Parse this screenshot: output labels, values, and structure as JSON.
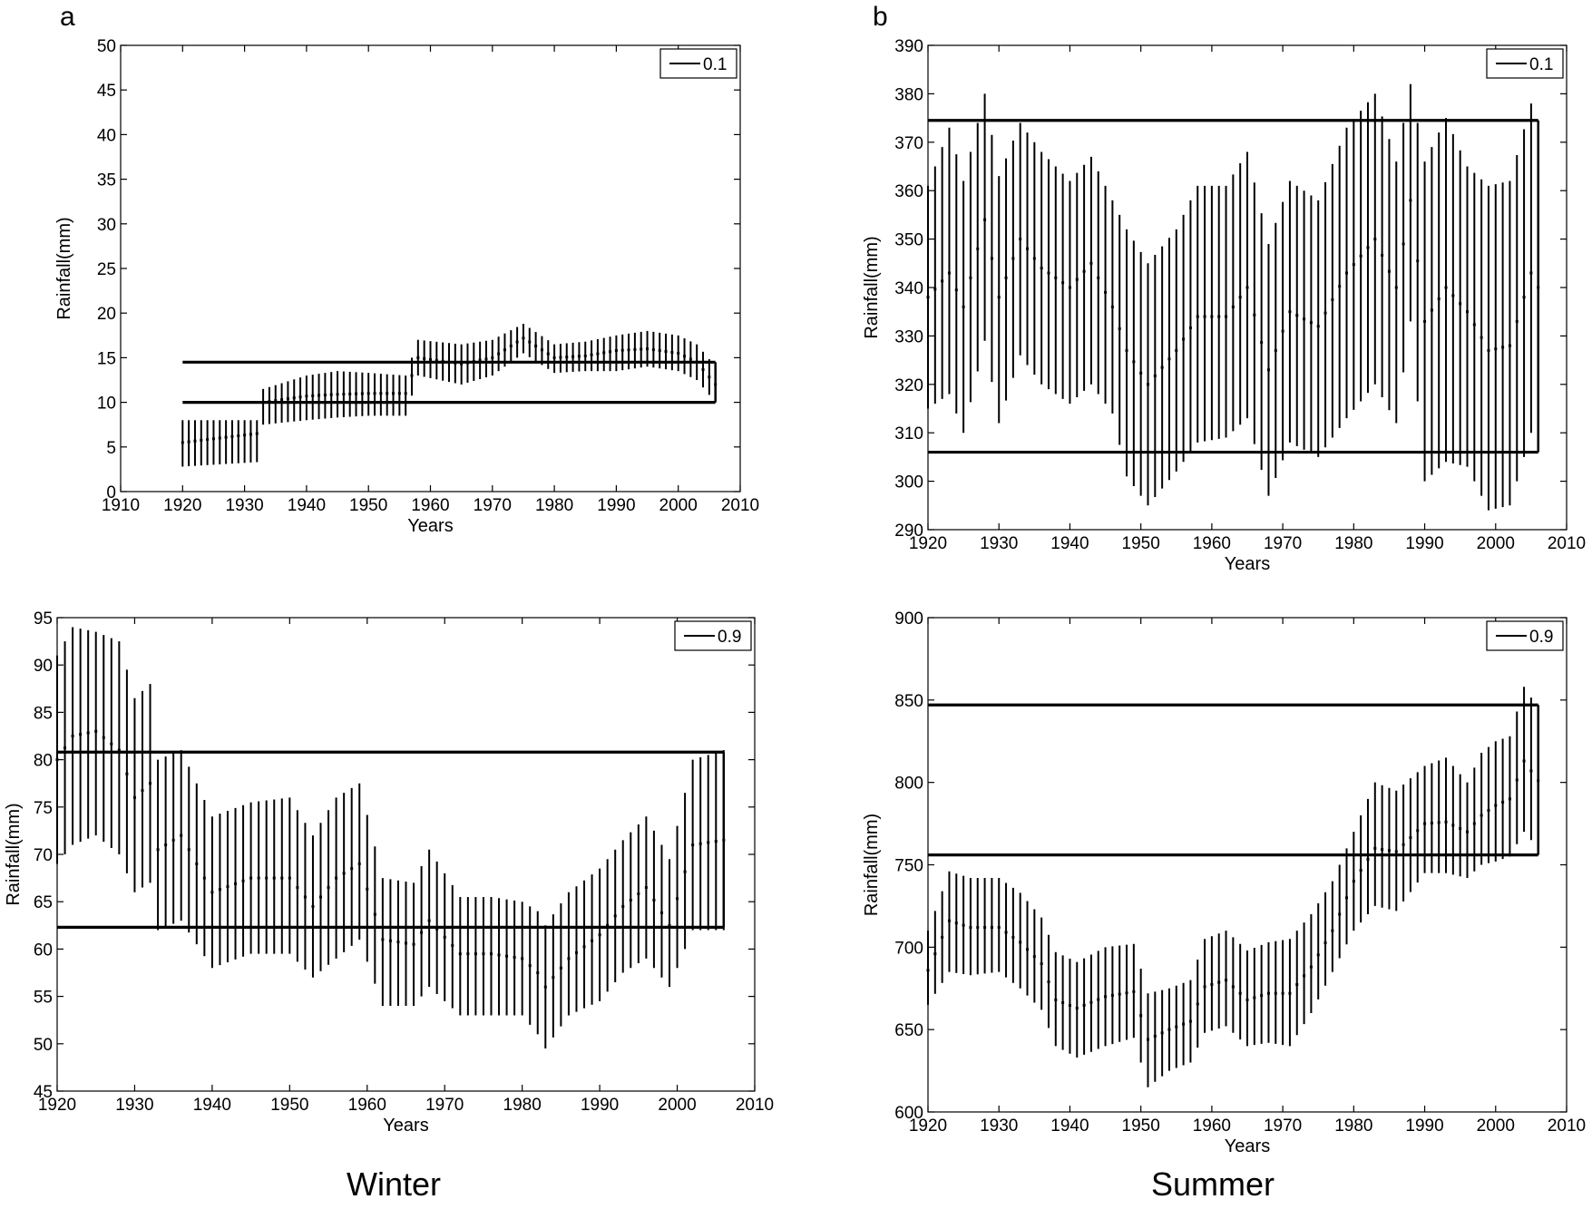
{
  "figure": {
    "panel_letters": [
      "a",
      "b"
    ],
    "column_labels": [
      "Winter",
      "Summer"
    ]
  },
  "chart_data": [
    {
      "type": "errorbar",
      "id": "winter-0.1",
      "xlabel": "Years",
      "ylabel": "Rainfall(mm)",
      "xlim": [
        1910,
        2010
      ],
      "ylim": [
        0,
        50
      ],
      "xticks": [
        1910,
        1920,
        1930,
        1940,
        1950,
        1960,
        1970,
        1980,
        1990,
        2000,
        2010
      ],
      "yticks": [
        0,
        5,
        10,
        15,
        20,
        25,
        30,
        35,
        40,
        45,
        50
      ],
      "legend": "0.1",
      "legend_position": "top-right",
      "threshold_lines": [
        14.5,
        10.0
      ],
      "threshold_x_range": [
        1920,
        2006
      ],
      "years_range": [
        1920,
        2006
      ],
      "points": [
        [
          1920,
          5.5,
          2.8,
          8.0
        ],
        [
          1932,
          6.5,
          3.3,
          8.0
        ],
        [
          1933,
          10.0,
          7.5,
          11.5
        ],
        [
          1940,
          10.7,
          8.0,
          13.0
        ],
        [
          1945,
          10.9,
          8.3,
          13.5
        ],
        [
          1950,
          11.0,
          8.5,
          13.3
        ],
        [
          1956,
          11.0,
          8.5,
          13.0
        ],
        [
          1958,
          15.0,
          13.0,
          17.0
        ],
        [
          1965,
          14.3,
          12.0,
          16.5
        ],
        [
          1970,
          15.0,
          13.0,
          17.0
        ],
        [
          1975,
          17.2,
          15.5,
          18.8
        ],
        [
          1980,
          15.0,
          13.3,
          16.5
        ],
        [
          1985,
          15.2,
          13.5,
          16.8
        ],
        [
          1990,
          15.8,
          13.5,
          17.5
        ],
        [
          1995,
          16.0,
          14.0,
          18.0
        ],
        [
          2000,
          15.5,
          13.5,
          17.5
        ],
        [
          2003,
          14.5,
          12.5,
          16.5
        ],
        [
          2006,
          12.0,
          10.0,
          14.0
        ]
      ]
    },
    {
      "type": "errorbar",
      "id": "summer-0.1",
      "xlabel": "Years",
      "ylabel": "Rainfall(mm)",
      "xlim": [
        1920,
        2010
      ],
      "ylim": [
        290,
        390
      ],
      "xticks": [
        1920,
        1930,
        1940,
        1950,
        1960,
        1970,
        1980,
        1990,
        2000,
        2010
      ],
      "yticks": [
        290,
        300,
        310,
        320,
        330,
        340,
        350,
        360,
        370,
        380,
        390
      ],
      "legend": "0.1",
      "legend_position": "top-right",
      "threshold_lines": [
        374.5,
        306.0
      ],
      "threshold_x_range": [
        1920,
        2006
      ],
      "years_range": [
        1920,
        2006
      ],
      "points": [
        [
          1920,
          338,
          315,
          361
        ],
        [
          1923,
          343,
          318,
          373
        ],
        [
          1925,
          336,
          310,
          362
        ],
        [
          1928,
          354,
          329,
          380
        ],
        [
          1930,
          338,
          312,
          363
        ],
        [
          1933,
          350,
          326,
          374
        ],
        [
          1936,
          344,
          320,
          368
        ],
        [
          1940,
          340,
          316,
          362
        ],
        [
          1943,
          345,
          320,
          367
        ],
        [
          1946,
          336,
          314,
          358
        ],
        [
          1948,
          327,
          301,
          352
        ],
        [
          1951,
          320,
          295,
          345
        ],
        [
          1955,
          327,
          302,
          352
        ],
        [
          1958,
          334,
          308,
          361
        ],
        [
          1962,
          334,
          309,
          361
        ],
        [
          1965,
          340,
          313,
          368
        ],
        [
          1968,
          323,
          297,
          349
        ],
        [
          1971,
          335,
          308,
          362
        ],
        [
          1975,
          332,
          305,
          358
        ],
        [
          1979,
          343,
          313,
          373
        ],
        [
          1983,
          350,
          320,
          380
        ],
        [
          1986,
          340,
          312,
          366
        ],
        [
          1988,
          358,
          333,
          382
        ],
        [
          1990,
          333,
          300,
          366
        ],
        [
          1993,
          340,
          304,
          375
        ],
        [
          1996,
          335,
          303,
          365
        ],
        [
          1999,
          327,
          294,
          361
        ],
        [
          2002,
          328,
          295,
          362
        ],
        [
          2005,
          343,
          310,
          378
        ],
        [
          2006,
          340,
          306,
          374
        ]
      ]
    },
    {
      "type": "errorbar",
      "id": "winter-0.9",
      "xlabel": "Years",
      "ylabel": "Rainfall(mm)",
      "xlim": [
        1920,
        2010
      ],
      "ylim": [
        45,
        95
      ],
      "xticks": [
        1920,
        1930,
        1940,
        1950,
        1960,
        1970,
        1980,
        1990,
        2000,
        2010
      ],
      "xticklabels": [
        "1920",
        "1930",
        "1940",
        "1950",
        "1960",
        "1970",
        "1980",
        "1990",
        "2000",
        "2010"
      ],
      "yticks": [
        45,
        50,
        55,
        60,
        65,
        70,
        75,
        80,
        85,
        90,
        95
      ],
      "legend": "0.9",
      "legend_position": "top-right",
      "threshold_lines": [
        80.8,
        62.3
      ],
      "threshold_x_range": [
        1920,
        2006
      ],
      "years_range": [
        1920,
        2006
      ],
      "points": [
        [
          1920,
          80,
          69,
          91
        ],
        [
          1922,
          82.5,
          71,
          94
        ],
        [
          1925,
          83,
          72,
          93.5
        ],
        [
          1928,
          81,
          70,
          92.5
        ],
        [
          1930,
          76,
          66,
          86.5
        ],
        [
          1932,
          77.5,
          67,
          88
        ],
        [
          1933,
          70.5,
          62,
          80
        ],
        [
          1936,
          72,
          63,
          81
        ],
        [
          1940,
          66,
          58,
          74
        ],
        [
          1945,
          67.5,
          59.5,
          75.5
        ],
        [
          1950,
          67.5,
          59.5,
          76
        ],
        [
          1953,
          64.5,
          57,
          72
        ],
        [
          1956,
          67.5,
          59,
          76
        ],
        [
          1959,
          69,
          61,
          77.5
        ],
        [
          1962,
          61,
          54,
          67.5
        ],
        [
          1966,
          60.5,
          54,
          67
        ],
        [
          1968,
          63,
          56,
          70.5
        ],
        [
          1972,
          59.5,
          53,
          65.5
        ],
        [
          1976,
          59.5,
          53,
          65.5
        ],
        [
          1980,
          59,
          53,
          65
        ],
        [
          1982,
          57.5,
          51,
          64
        ],
        [
          1983,
          56,
          49.5,
          62.5
        ],
        [
          1986,
          59,
          53,
          66
        ],
        [
          1990,
          61.5,
          54.5,
          68.5
        ],
        [
          1993,
          64.5,
          57.5,
          71.5
        ],
        [
          1996,
          66.5,
          59,
          74
        ],
        [
          1999,
          62.5,
          56,
          69.5
        ],
        [
          2002,
          71,
          62,
          80
        ],
        [
          2006,
          71.5,
          62,
          81
        ]
      ]
    },
    {
      "type": "errorbar",
      "id": "summer-0.9",
      "xlabel": "Years",
      "ylabel": "Rainfall(mm)",
      "xlim": [
        1920,
        2010
      ],
      "ylim": [
        600,
        900
      ],
      "xticks": [
        1920,
        1930,
        1940,
        1950,
        1960,
        1970,
        1980,
        1990,
        2000,
        2010
      ],
      "yticks": [
        600,
        650,
        700,
        750,
        800,
        850,
        900
      ],
      "legend": "0.9",
      "legend_position": "top-right",
      "threshold_lines": [
        847,
        756
      ],
      "threshold_x_range": [
        1920,
        2006
      ],
      "years_range": [
        1920,
        2006
      ],
      "points": [
        [
          1920,
          686,
          665,
          710
        ],
        [
          1923,
          716,
          685,
          746
        ],
        [
          1926,
          712,
          683,
          742
        ],
        [
          1930,
          712,
          685,
          742
        ],
        [
          1933,
          703,
          675,
          733
        ],
        [
          1936,
          690,
          662,
          718
        ],
        [
          1938,
          668,
          640,
          697
        ],
        [
          1941,
          663,
          633,
          691
        ],
        [
          1945,
          670,
          640,
          700
        ],
        [
          1949,
          673,
          645,
          702
        ],
        [
          1951,
          644,
          615,
          672
        ],
        [
          1954,
          650,
          625,
          675
        ],
        [
          1957,
          655,
          630,
          680
        ],
        [
          1959,
          676,
          648,
          705
        ],
        [
          1962,
          680,
          652,
          710
        ],
        [
          1965,
          668,
          640,
          698
        ],
        [
          1968,
          672,
          642,
          703
        ],
        [
          1971,
          672,
          640,
          705
        ],
        [
          1974,
          688,
          660,
          720
        ],
        [
          1977,
          710,
          685,
          740
        ],
        [
          1980,
          740,
          710,
          770
        ],
        [
          1983,
          760,
          725,
          800
        ],
        [
          1986,
          758,
          722,
          795
        ],
        [
          1990,
          775,
          745,
          810
        ],
        [
          1993,
          776,
          745,
          815
        ],
        [
          1996,
          770,
          742,
          800
        ],
        [
          1998,
          780,
          750,
          818
        ],
        [
          2000,
          786,
          752,
          825
        ],
        [
          2002,
          790,
          755,
          828
        ],
        [
          2004,
          813,
          770,
          858
        ],
        [
          2006,
          801,
          760,
          845
        ]
      ]
    }
  ]
}
